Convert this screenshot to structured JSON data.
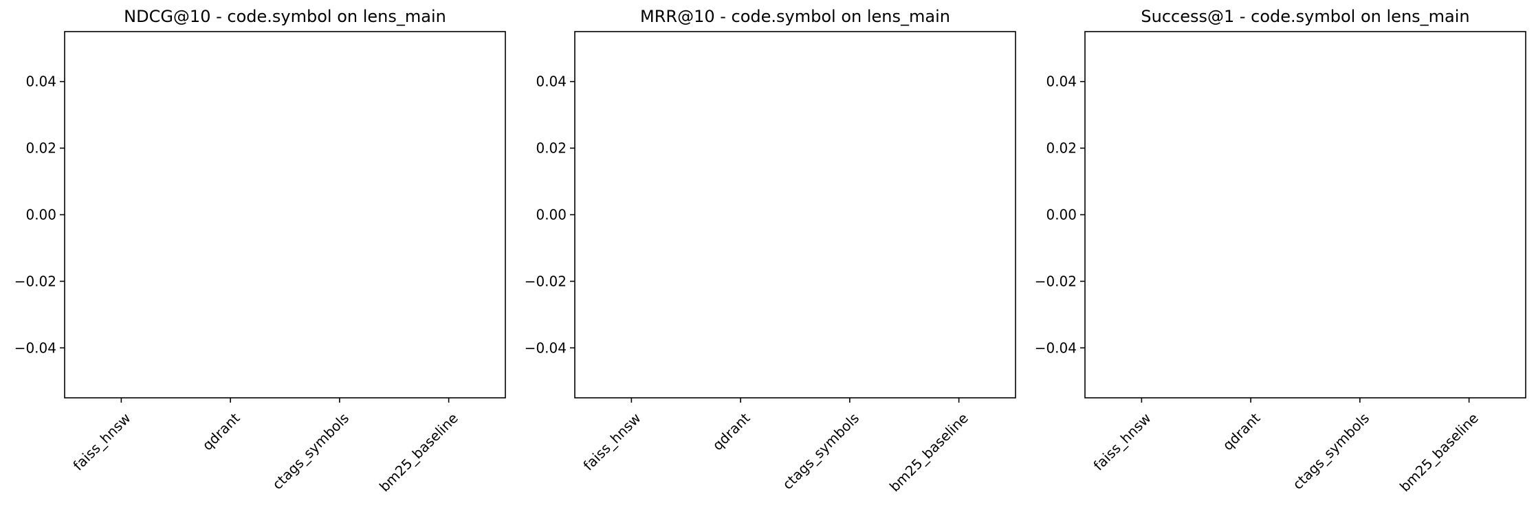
{
  "chart_data": [
    {
      "type": "bar",
      "title": "NDCG@10 - code.symbol on lens_main",
      "xlabel": "",
      "ylabel": "",
      "categories": [
        "faiss_hnsw",
        "qdrant",
        "ctags_symbols",
        "bm25_baseline"
      ],
      "values": [
        0,
        0,
        0,
        0
      ],
      "ylim": [
        -0.055,
        0.055
      ],
      "yticks": [
        0.04,
        0.02,
        0.0,
        -0.02,
        -0.04
      ],
      "ytick_labels": [
        "0.04",
        "0.02",
        "0.00",
        "−0.02",
        "−0.04"
      ],
      "grid": false,
      "xtick_rotation": 45
    },
    {
      "type": "bar",
      "title": "MRR@10 - code.symbol on lens_main",
      "xlabel": "",
      "ylabel": "",
      "categories": [
        "faiss_hnsw",
        "qdrant",
        "ctags_symbols",
        "bm25_baseline"
      ],
      "values": [
        0,
        0,
        0,
        0
      ],
      "ylim": [
        -0.055,
        0.055
      ],
      "yticks": [
        0.04,
        0.02,
        0.0,
        -0.02,
        -0.04
      ],
      "ytick_labels": [
        "0.04",
        "0.02",
        "0.00",
        "−0.02",
        "−0.04"
      ],
      "grid": false,
      "xtick_rotation": 45
    },
    {
      "type": "bar",
      "title": "Success@1 - code.symbol on lens_main",
      "xlabel": "",
      "ylabel": "",
      "categories": [
        "faiss_hnsw",
        "qdrant",
        "ctags_symbols",
        "bm25_baseline"
      ],
      "values": [
        0,
        0,
        0,
        0
      ],
      "ylim": [
        -0.055,
        0.055
      ],
      "yticks": [
        0.04,
        0.02,
        0.0,
        -0.02,
        -0.04
      ],
      "ytick_labels": [
        "0.04",
        "0.02",
        "0.00",
        "−0.02",
        "−0.04"
      ],
      "grid": false,
      "xtick_rotation": 45
    }
  ]
}
